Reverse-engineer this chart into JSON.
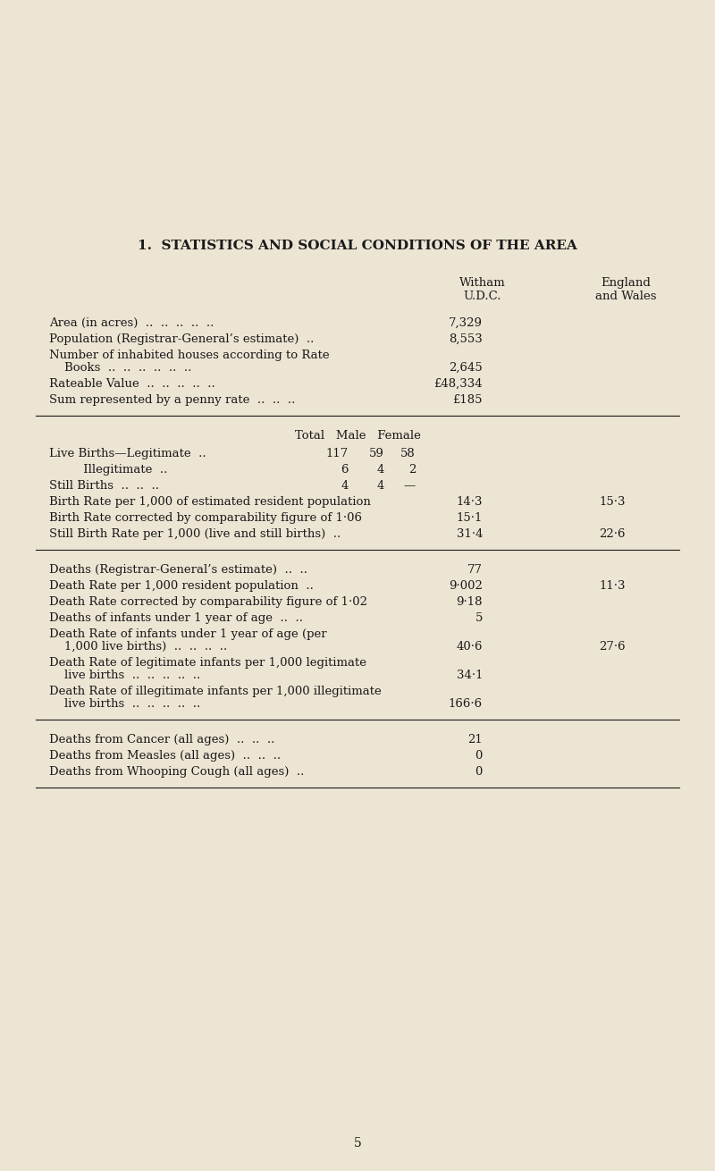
{
  "title": "1.  STATISTICS AND SOCIAL CONDITIONS OF THE AREA",
  "bg_color": "#ede5d4",
  "text_color": "#1a1a1a",
  "col_witham_hdr": "Witham\nU.D.C.",
  "col_england_hdr": "England\nand Wales",
  "section1": [
    {
      "label": "Area (in acres)  ..  ..  ..  ..  ..",
      "witham": "7,329",
      "england": "",
      "two_line": false
    },
    {
      "label": "Population (Registrar-General’s estimate)  ..",
      "witham": "8,553",
      "england": "",
      "two_line": false
    },
    {
      "label": "Number of inhabited houses according to Rate",
      "label2": "    Books  ..  ..  ..  ..  ..  ..",
      "witham": "2,645",
      "england": "",
      "two_line": true
    },
    {
      "label": "Rateable Value  ..  ..  ..  ..  ..",
      "witham": "£48,334",
      "england": "",
      "two_line": false
    },
    {
      "label": "Sum represented by a penny rate  ..  ..  ..",
      "witham": "£185",
      "england": "",
      "two_line": false
    }
  ],
  "section2_births": [
    {
      "label": "Live Births—Legitimate  ..",
      "total": "117",
      "male": "59",
      "female": "58"
    },
    {
      "label": "         Illegitimate  ..",
      "total": "6",
      "male": "4",
      "female": "2"
    },
    {
      "label": "Still Births  ..  ..  ..",
      "total": "4",
      "male": "4",
      "female": "—"
    }
  ],
  "section2_rates": [
    {
      "label": "Birth Rate per 1,000 of estimated resident population",
      "witham": "14·3",
      "england": "15·3"
    },
    {
      "label": "Birth Rate corrected by comparability figure of 1·06",
      "witham": "15·1",
      "england": ""
    },
    {
      "label": "Still Birth Rate per 1,000 (live and still births)  ..",
      "witham": "31·4",
      "england": "22·6"
    }
  ],
  "section3": [
    {
      "label": "Deaths (Registrar-General’s estimate)  ..  ..",
      "witham": "77",
      "england": "",
      "two_line": false
    },
    {
      "label": "Death Rate per 1,000 resident population  ..",
      "witham": "9·002",
      "england": "11·3",
      "two_line": false
    },
    {
      "label": "Death Rate corrected by comparability figure of 1·02",
      "witham": "9·18",
      "england": "",
      "two_line": false
    },
    {
      "label": "Deaths of infants under 1 year of age  ..  ..",
      "witham": "5",
      "england": "",
      "two_line": false
    },
    {
      "label": "Death Rate of infants under 1 year of age (per",
      "label2": "    1,000 live births)  ..  ..  ..  ..",
      "witham": "40·6",
      "england": "27·6",
      "two_line": true
    },
    {
      "label": "Death Rate of legitimate infants per 1,000 legitimate",
      "label2": "    live births  ..  ..  ..  ..  ..",
      "witham": "34·1",
      "england": "",
      "two_line": true
    },
    {
      "label": "Death Rate of illegitimate infants per 1,000 illegitimate",
      "label2": "    live births  ..  ..  ..  ..  ..",
      "witham": "166·6",
      "england": "",
      "two_line": true
    }
  ],
  "section4": [
    {
      "label": "Deaths from Cancer (all ages)  ..  ..  ..",
      "witham": "21",
      "england": ""
    },
    {
      "label": "Deaths from Measles (all ages)  ..  ..  ..",
      "witham": "0",
      "england": ""
    },
    {
      "label": "Deaths from Whooping Cough (all ages)  ..",
      "witham": "0",
      "england": ""
    }
  ],
  "page_number": "5"
}
